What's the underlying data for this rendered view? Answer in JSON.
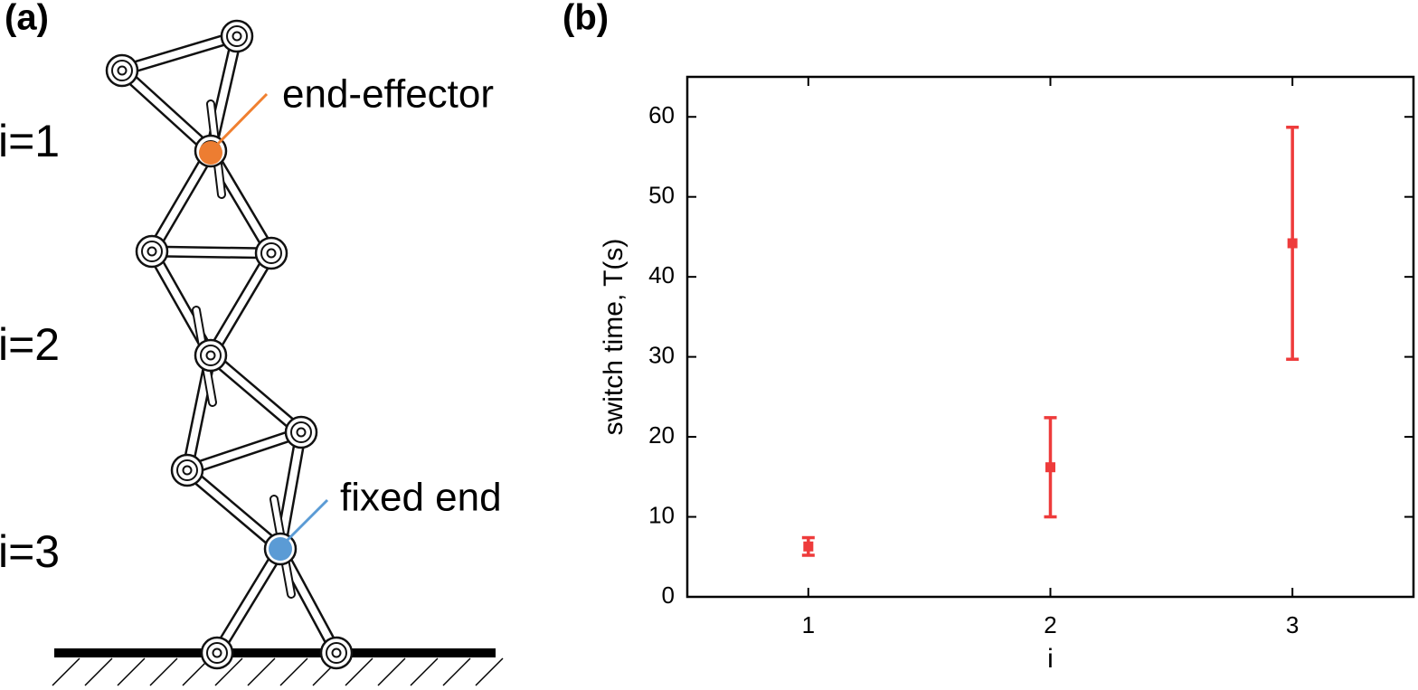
{
  "diagram": {
    "panel_label": "(a)",
    "levels": [
      "i=1",
      "i=2",
      "i=3"
    ],
    "end_effector": "end-effector",
    "fixed_end": "fixed end"
  },
  "chart_data": {
    "type": "errorbar",
    "panel_label": "(b)",
    "x_label": "i",
    "y_label": "switch time, T(s)",
    "x": [
      1,
      2,
      3
    ],
    "values": [
      6.3,
      16.2,
      44.2
    ],
    "errors": [
      1.1,
      6.2,
      14.5
    ],
    "color": "#ee3b3b",
    "xlim": [
      0.5,
      3.5
    ],
    "ylim": [
      0,
      65
    ],
    "xticks": [
      1,
      2,
      3
    ],
    "yticks": [
      0,
      10,
      20,
      30,
      40,
      50,
      60
    ]
  }
}
